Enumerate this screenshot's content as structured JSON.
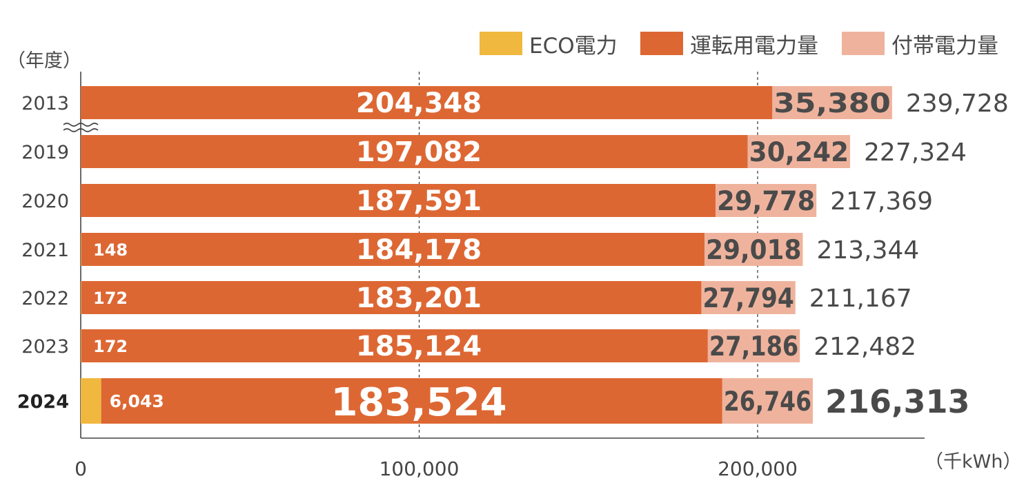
{
  "legend": [
    {
      "label": "ECO電力",
      "color": "#f0b83f"
    },
    {
      "label": "運転用電力量",
      "color": "#dd6733"
    },
    {
      "label": "付帯電力量",
      "color": "#efb39d"
    }
  ],
  "y_unit": "（年度）",
  "x_unit": "（千kWh）",
  "axis_break_marker": "≈",
  "chart_data": {
    "type": "bar",
    "orientation": "horizontal",
    "stacked": true,
    "categories": [
      "2013",
      "2019",
      "2020",
      "2021",
      "2022",
      "2023",
      "2024"
    ],
    "highlight_category": "2024",
    "series": [
      {
        "name": "ECO電力",
        "color": "#f0b83f",
        "values": [
          0,
          0,
          0,
          148,
          172,
          172,
          6043
        ],
        "labels": [
          "",
          "",
          "",
          "148",
          "172",
          "172",
          "6,043"
        ]
      },
      {
        "name": "運転用電力量",
        "color": "#dd6733",
        "values": [
          204348,
          197082,
          187591,
          184178,
          183201,
          185124,
          183524
        ],
        "labels": [
          "204,348",
          "197,082",
          "187,591",
          "184,178",
          "183,201",
          "185,124",
          "183,524"
        ]
      },
      {
        "name": "付帯電力量",
        "color": "#efb39d",
        "values": [
          35380,
          30242,
          29778,
          29018,
          27794,
          27186,
          26746
        ],
        "labels": [
          "35,380",
          "30,242",
          "29,778",
          "29,018",
          "27,794",
          "27,186",
          "26,746"
        ]
      }
    ],
    "totals": [
      239728,
      227324,
      217369,
      213344,
      211167,
      212482,
      216313
    ],
    "total_labels": [
      "239,728",
      "227,324",
      "217,369",
      "213,344",
      "211,167",
      "212,482",
      "216,313"
    ],
    "xlim": [
      0,
      240000
    ],
    "xticks": [
      0,
      100000,
      200000
    ],
    "xtick_labels": [
      "0",
      "100,000",
      "200,000"
    ],
    "grid": "vertical dashed at 100,000 and 200,000",
    "legend_position": "top-right"
  }
}
